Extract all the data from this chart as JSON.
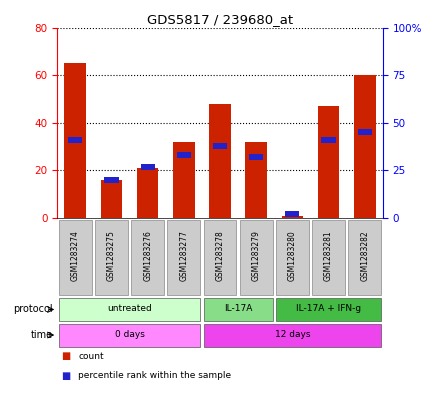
{
  "title": "GDS5817 / 239680_at",
  "samples": [
    "GSM1283274",
    "GSM1283275",
    "GSM1283276",
    "GSM1283277",
    "GSM1283278",
    "GSM1283279",
    "GSM1283280",
    "GSM1283281",
    "GSM1283282"
  ],
  "counts": [
    65,
    16,
    21,
    32,
    48,
    32,
    1,
    47,
    60
  ],
  "percentiles": [
    41,
    20,
    27,
    33,
    38,
    32,
    2,
    41,
    45
  ],
  "left_ylim": [
    0,
    80
  ],
  "right_ylim": [
    0,
    100
  ],
  "left_yticks": [
    0,
    20,
    40,
    60,
    80
  ],
  "right_yticks": [
    0,
    25,
    50,
    75,
    100
  ],
  "right_yticklabels": [
    "0",
    "25",
    "50",
    "75",
    "100%"
  ],
  "bar_color": "#cc2200",
  "percentile_color": "#2222cc",
  "protocol_groups": [
    {
      "label": "untreated",
      "start": 0,
      "end": 4,
      "color": "#ccffcc"
    },
    {
      "label": "IL-17A",
      "start": 4,
      "end": 6,
      "color": "#88dd88"
    },
    {
      "label": "IL-17A + IFN-g",
      "start": 6,
      "end": 9,
      "color": "#44bb44"
    }
  ],
  "time_groups": [
    {
      "label": "0 days",
      "start": 0,
      "end": 4,
      "color": "#ff88ff"
    },
    {
      "label": "12 days",
      "start": 4,
      "end": 9,
      "color": "#ee44ee"
    }
  ],
  "sample_bg_color": "#cccccc",
  "grid_color": "black"
}
